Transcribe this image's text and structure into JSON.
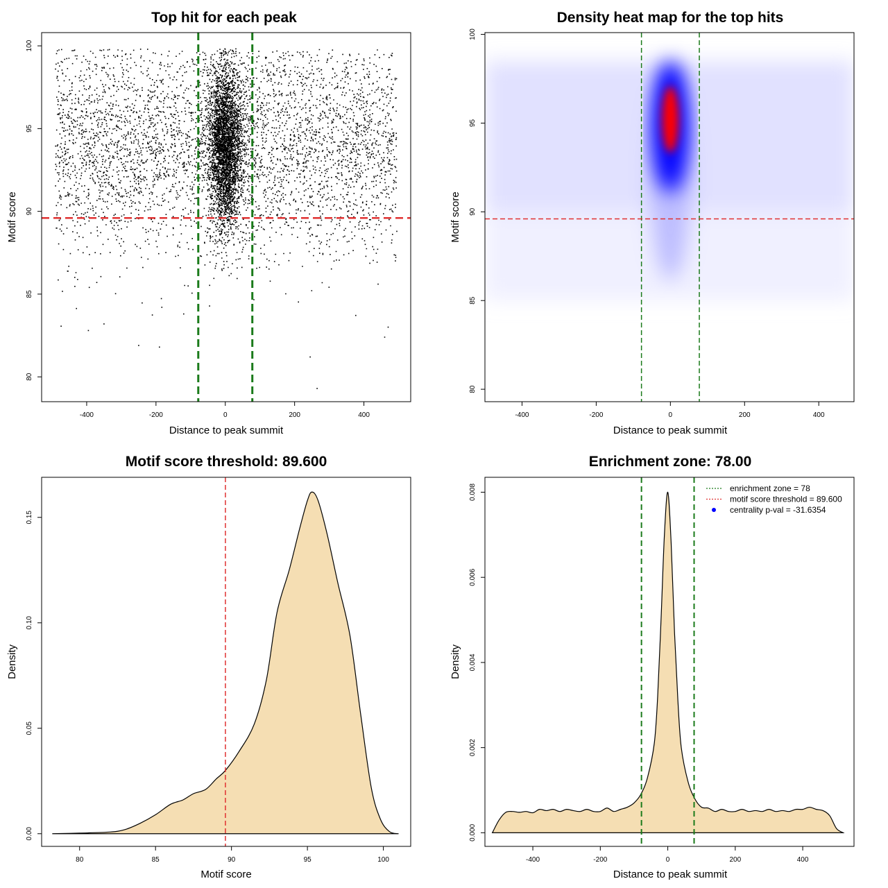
{
  "colors": {
    "points": "#000000",
    "threshold_line": "#e03030",
    "zone_line": "#1a7a1a",
    "density_fill": "#f5deb3",
    "heat_low": "#ffffff",
    "heat_mid": "#0000ff",
    "heat_high": "#ff0000",
    "legend_dot": "#0000ff"
  },
  "chart_data": [
    {
      "type": "scatter",
      "title": "Top hit for each peak",
      "xlabel": "Distance to peak summit",
      "ylabel": "Motif score",
      "xlim": [
        -530,
        535
      ],
      "ylim": [
        78.5,
        100.8
      ],
      "xticks": [
        -400,
        -200,
        0,
        200,
        400
      ],
      "yticks": [
        80,
        85,
        90,
        95,
        100
      ],
      "hline": 89.6,
      "vlines": [
        -78,
        78
      ],
      "background_points": {
        "x_range": [
          -490,
          495
        ],
        "y_range": [
          83,
          99
        ],
        "y_center": 94,
        "y_spread": 3.2
      },
      "central_points": {
        "x_center": 0,
        "x_spread": 25,
        "y_center": 94,
        "y_spread": 2.4
      },
      "outliers": [
        {
          "x": -395,
          "y": 82.8
        },
        {
          "x": -350,
          "y": 83.2
        },
        {
          "x": -250,
          "y": 81.9
        },
        {
          "x": -190,
          "y": 81.8
        },
        {
          "x": 245,
          "y": 81.2
        },
        {
          "x": 265,
          "y": 79.3
        },
        {
          "x": 460,
          "y": 82.4
        },
        {
          "x": 470,
          "y": 83.0
        },
        {
          "x": -120,
          "y": 83.8
        }
      ]
    },
    {
      "type": "heatmap",
      "title": "Density heat map for the top hits",
      "xlabel": "Distance to peak summit",
      "ylabel": "Motif score",
      "xlim": [
        -500,
        495
      ],
      "ylim": [
        79.3,
        100.1
      ],
      "xticks": [
        -400,
        -200,
        0,
        200,
        400
      ],
      "yticks": [
        80,
        85,
        90,
        95,
        100
      ],
      "hline": 89.6,
      "vlines": [
        -78,
        78
      ],
      "hotspot": {
        "x": 0,
        "y": 95.2
      }
    },
    {
      "type": "area",
      "title": "Motif score threshold: 89.600",
      "xlabel": "Motif score",
      "ylabel": "Density",
      "xlim": [
        77.5,
        101.8
      ],
      "ylim": [
        -0.006,
        0.169
      ],
      "xticks": [
        80,
        85,
        90,
        95,
        100
      ],
      "yticks": [
        0.0,
        0.05,
        0.1,
        0.15
      ],
      "ytick_labels": [
        "0.00",
        "0.05",
        "0.10",
        "0.15"
      ],
      "vline": 89.6,
      "x": [
        78.2,
        80,
        82,
        83,
        84,
        85,
        86,
        86.8,
        87.5,
        88.3,
        89,
        89.6,
        90.5,
        91.5,
        92.3,
        93,
        93.8,
        94.5,
        95,
        95.3,
        95.7,
        96.3,
        97,
        97.8,
        98.5,
        99.2,
        99.8,
        100.4,
        101
      ],
      "y": [
        0,
        0.0003,
        0.0008,
        0.002,
        0.005,
        0.009,
        0.014,
        0.016,
        0.019,
        0.021,
        0.026,
        0.03,
        0.039,
        0.052,
        0.073,
        0.105,
        0.125,
        0.145,
        0.158,
        0.162,
        0.158,
        0.142,
        0.119,
        0.094,
        0.057,
        0.022,
        0.007,
        0.001,
        0
      ]
    },
    {
      "type": "area",
      "title": "Enrichment zone: 78.00",
      "xlabel": "Distance to peak summit",
      "ylabel": "Density",
      "xlim": [
        -542,
        552
      ],
      "ylim": [
        -0.00032,
        0.00835
      ],
      "xticks": [
        -400,
        -200,
        0,
        200,
        400
      ],
      "yticks": [
        0.0,
        0.002,
        0.004,
        0.006,
        0.008
      ],
      "ytick_labels": [
        "0.000",
        "0.002",
        "0.004",
        "0.006",
        "0.008"
      ],
      "vlines": [
        -78,
        78
      ],
      "x": [
        -520,
        -500,
        -480,
        -460,
        -440,
        -420,
        -400,
        -380,
        -360,
        -340,
        -320,
        -300,
        -280,
        -260,
        -240,
        -220,
        -200,
        -180,
        -160,
        -140,
        -120,
        -100,
        -80,
        -60,
        -40,
        -30,
        -20,
        -10,
        0,
        10,
        20,
        30,
        40,
        60,
        80,
        100,
        120,
        140,
        160,
        180,
        200,
        220,
        240,
        260,
        280,
        300,
        320,
        340,
        360,
        380,
        400,
        420,
        440,
        460,
        480,
        500,
        520
      ],
      "y": [
        0,
        0.0003,
        0.00048,
        0.0005,
        0.00048,
        0.0005,
        0.00047,
        0.00055,
        0.00052,
        0.00055,
        0.0005,
        0.00055,
        0.00052,
        0.0005,
        0.00055,
        0.0005,
        0.0005,
        0.00058,
        0.0005,
        0.00055,
        0.0006,
        0.0007,
        0.0009,
        0.0013,
        0.0021,
        0.0032,
        0.005,
        0.007,
        0.008,
        0.0068,
        0.0047,
        0.0031,
        0.002,
        0.0012,
        0.0008,
        0.0006,
        0.00058,
        0.0005,
        0.00055,
        0.0005,
        0.0005,
        0.00055,
        0.0005,
        0.00052,
        0.0005,
        0.00055,
        0.0005,
        0.00052,
        0.0005,
        0.00055,
        0.00055,
        0.0006,
        0.00055,
        0.00052,
        0.0004,
        0.0001,
        0
      ],
      "legend": [
        {
          "label": "enrichment zone = 78",
          "style": "dotted-line",
          "color": "#1a7a1a"
        },
        {
          "label": "motif score threshold = 89.600",
          "style": "dotted-line",
          "color": "#e03030"
        },
        {
          "label": "centrality p-val = -31.6354",
          "style": "dot",
          "color": "#0000ff"
        }
      ],
      "legend_position": "top-right"
    }
  ]
}
